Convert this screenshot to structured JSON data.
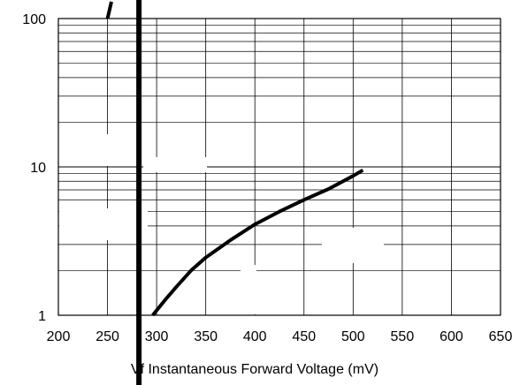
{
  "chart_data": {
    "type": "line",
    "title": "",
    "xlabel": "Vf Instantaneous Forward  Voltage (mV)",
    "ylabel": "",
    "xlim": [
      200,
      650
    ],
    "ylim": [
      1,
      100
    ],
    "y_scale": "log",
    "grid": true,
    "x_ticks": [
      200,
      250,
      300,
      350,
      400,
      450,
      500,
      550,
      600,
      650
    ],
    "x_tick_labels": [
      "200",
      "250",
      "300",
      "350",
      "400",
      "450",
      "500",
      "550",
      "600",
      "650"
    ],
    "y_ticks": [
      1,
      10,
      100
    ],
    "y_tick_labels": [
      "1",
      "10",
      "100"
    ],
    "series": [
      {
        "color": "#000000",
        "points": [
          [
            296,
            1.0
          ],
          [
            310,
            1.3
          ],
          [
            320,
            1.55
          ],
          [
            335,
            2.0
          ],
          [
            350,
            2.45
          ],
          [
            375,
            3.2
          ],
          [
            400,
            4.1
          ],
          [
            425,
            5.0
          ],
          [
            450,
            6.0
          ],
          [
            475,
            7.1
          ],
          [
            500,
            8.7
          ],
          [
            510,
            9.5
          ]
        ]
      },
      {
        "color": "#000000",
        "points": [
          [
            250,
            100
          ],
          [
            254,
            130
          ]
        ]
      }
    ],
    "reference_lines": [
      {
        "orientation": "vertical",
        "x": 282,
        "color": "#000000"
      }
    ]
  }
}
